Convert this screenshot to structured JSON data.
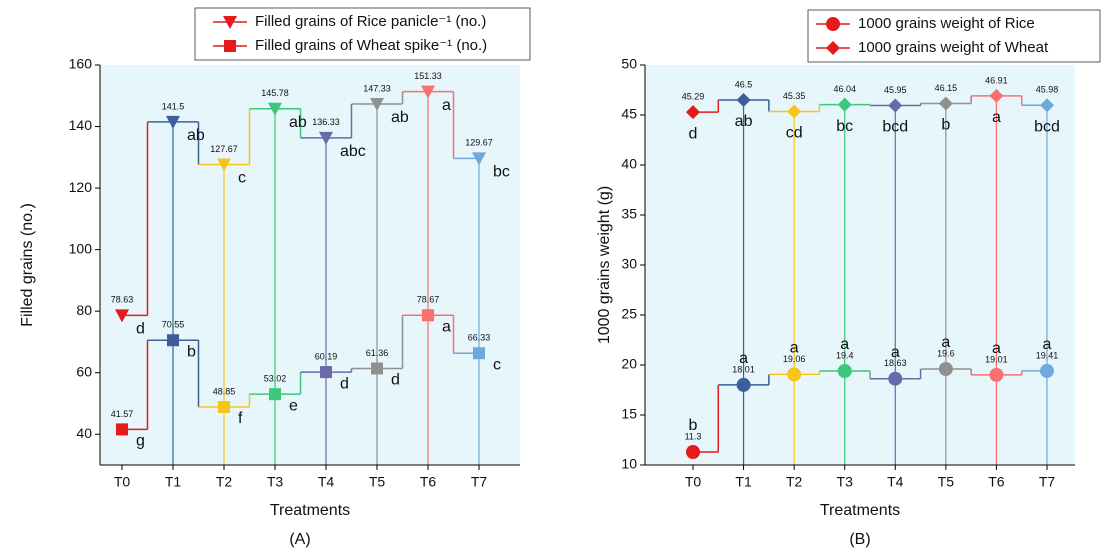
{
  "chart_data": [
    {
      "type": "step",
      "caption": "(A)",
      "x_label": "Treatments",
      "y_label": "Filled grains (no.)",
      "categories": [
        "T0",
        "T1",
        "T2",
        "T3",
        "T4",
        "T5",
        "T6",
        "T7"
      ],
      "point_colors": [
        "#e41a1c",
        "#3a5f9a",
        "#f5c518",
        "#3cc87a",
        "#6a6aaa",
        "#909090",
        "#f87070",
        "#6fa8dc"
      ],
      "ylim": [
        30,
        160
      ],
      "yticks": [
        40,
        60,
        80,
        100,
        120,
        140,
        160
      ],
      "background": "#e6f6fb",
      "series": [
        {
          "name": "Filled grains of Rice panicle⁻¹ (no.)",
          "color": "#e41a1c",
          "marker": "triangle-down",
          "values": [
            78.63,
            141.5,
            127.67,
            145.78,
            136.33,
            147.33,
            151.33,
            129.67
          ],
          "letters": [
            "d",
            "ab",
            "c",
            "ab",
            "abc",
            "ab",
            "a",
            "bc"
          ]
        },
        {
          "name": "Filled grains of Wheat spike⁻¹ (no.)",
          "color": "#e41a1c",
          "marker": "square",
          "values": [
            41.57,
            70.55,
            48.85,
            53.02,
            60.19,
            61.36,
            78.67,
            66.33
          ],
          "letters": [
            "g",
            "b",
            "f",
            "e",
            "d",
            "d",
            "a",
            "c"
          ]
        }
      ]
    },
    {
      "type": "step",
      "caption": "(B)",
      "x_label": "Treatments",
      "y_label": "1000 grains weight (g)",
      "categories": [
        "T0",
        "T1",
        "T2",
        "T3",
        "T4",
        "T5",
        "T6",
        "T7"
      ],
      "point_colors": [
        "#e41a1c",
        "#3a5f9a",
        "#f5c518",
        "#3cc87a",
        "#6a6aaa",
        "#909090",
        "#f87070",
        "#6fa8dc"
      ],
      "ylim": [
        10,
        50
      ],
      "yticks": [
        10,
        15,
        20,
        25,
        30,
        35,
        40,
        45,
        50
      ],
      "background": "#e6f6fb",
      "series": [
        {
          "name": "1000 grains weight of Rice",
          "color": "#e41a1c",
          "marker": "circle",
          "values": [
            11.3,
            18.01,
            19.06,
            19.4,
            18.63,
            19.6,
            19.01,
            19.41
          ],
          "letters": [
            "b",
            "a",
            "a",
            "a",
            "a",
            "a",
            "a",
            "a"
          ]
        },
        {
          "name": "1000 grains weight of Wheat",
          "color": "#e41a1c",
          "marker": "diamond",
          "values": [
            45.29,
            46.5,
            45.35,
            46.04,
            45.95,
            46.15,
            46.91,
            45.98
          ],
          "letters": [
            "d",
            "ab",
            "cd",
            "bc",
            "bcd",
            "b",
            "a",
            "bcd"
          ]
        }
      ]
    }
  ]
}
